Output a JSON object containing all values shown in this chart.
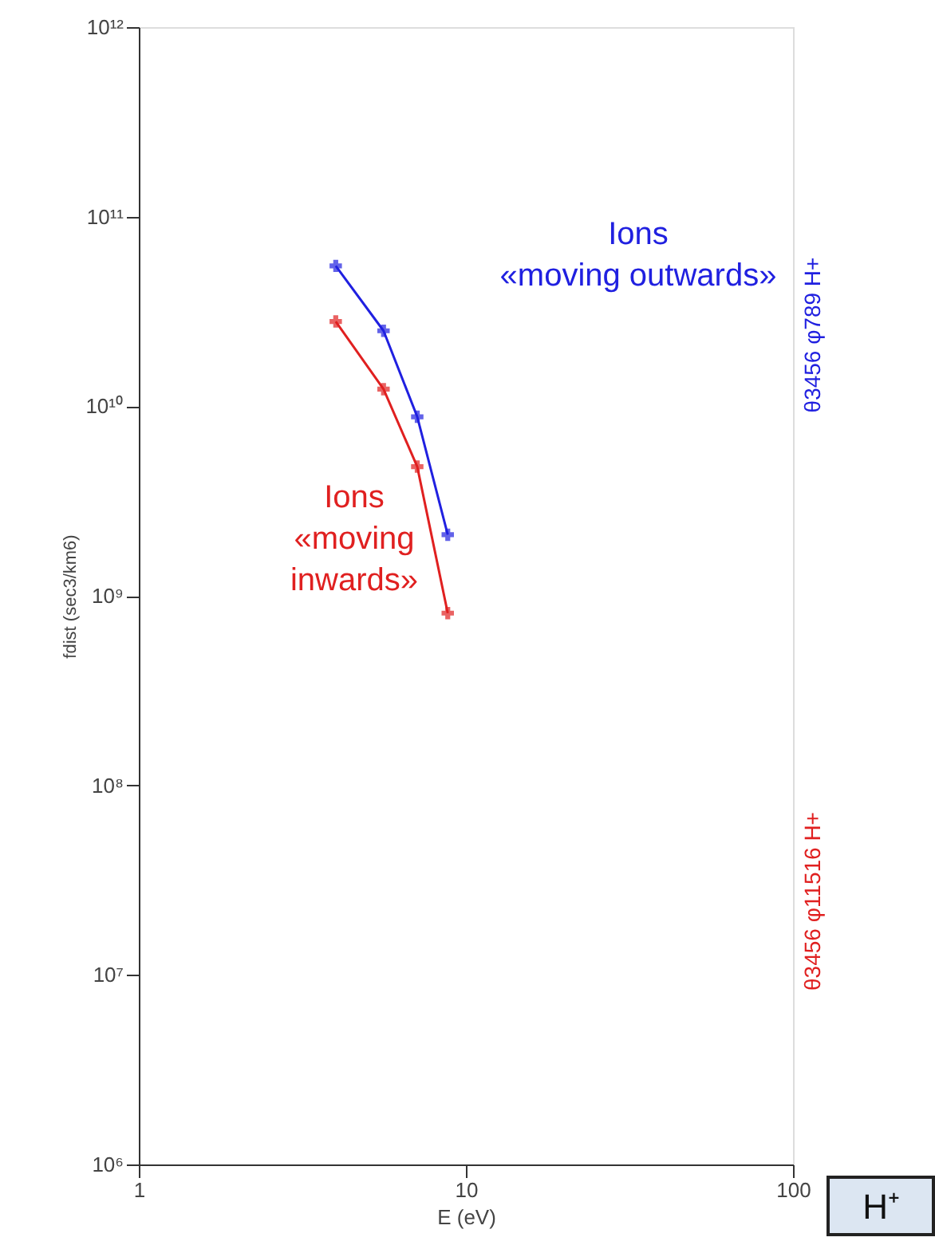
{
  "chart_data": {
    "type": "line",
    "xlabel": "E (eV)",
    "ylabel": "fdist (sec3/km6)",
    "log": "xy",
    "grid": false,
    "marker": "cross",
    "line_style": "solid",
    "xlim": [
      1,
      100
    ],
    "xticks": [
      1,
      10,
      100
    ],
    "ylim": [
      1000000.0,
      1000000000000.0
    ],
    "yticks": [
      {
        "value": 1000000.0,
        "label": "10⁶"
      },
      {
        "value": 10000000.0,
        "label": "10⁷"
      },
      {
        "value": 100000000.0,
        "label": "10⁸"
      },
      {
        "value": 1000000000.0,
        "label": "10⁹"
      },
      {
        "value": 10000000000.0,
        "label": "10¹⁰"
      },
      {
        "value": 100000000000.0,
        "label": "10¹¹"
      },
      {
        "value": 1000000000000.0,
        "label": "10¹²"
      }
    ],
    "series": [
      {
        "name": "Ions\n«moving outwards»",
        "color": "#2020e0",
        "x": [
          4.0,
          5.6,
          7.1,
          8.8
        ],
        "values": [
          55000000000.0,
          25000000000.0,
          8800000000.0,
          2100000000.0
        ]
      },
      {
        "name": "Ions\n«moving\ninwards»",
        "color": "#e02020",
        "x": [
          4.0,
          5.6,
          7.1,
          8.8
        ],
        "values": [
          28000000000.0,
          12300000000.0,
          4800000000.0,
          810000000.0
        ]
      }
    ],
    "annotations": [
      "θ3456 φ789 H+",
      "θ3456 φ11516 H+",
      "H⁺"
    ]
  }
}
